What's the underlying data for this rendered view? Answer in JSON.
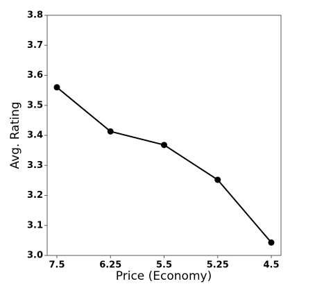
{
  "chart_data": {
    "type": "line",
    "xlabel": "Price (Economy)",
    "ylabel": "Avg. Rating",
    "categories": [
      "7.5",
      "6.25",
      "5.5",
      "5.25",
      "4.5"
    ],
    "values": [
      3.56,
      3.413,
      3.368,
      3.252,
      3.043
    ],
    "color": "#000000",
    "ylim": [
      3.0,
      3.8
    ],
    "yticks": [
      {
        "value": 3,
        "label": "3.0"
      },
      3.1,
      3.2,
      3.3,
      3.4,
      3.5,
      3.6,
      3.7,
      3.8
    ],
    "grid": false
  }
}
